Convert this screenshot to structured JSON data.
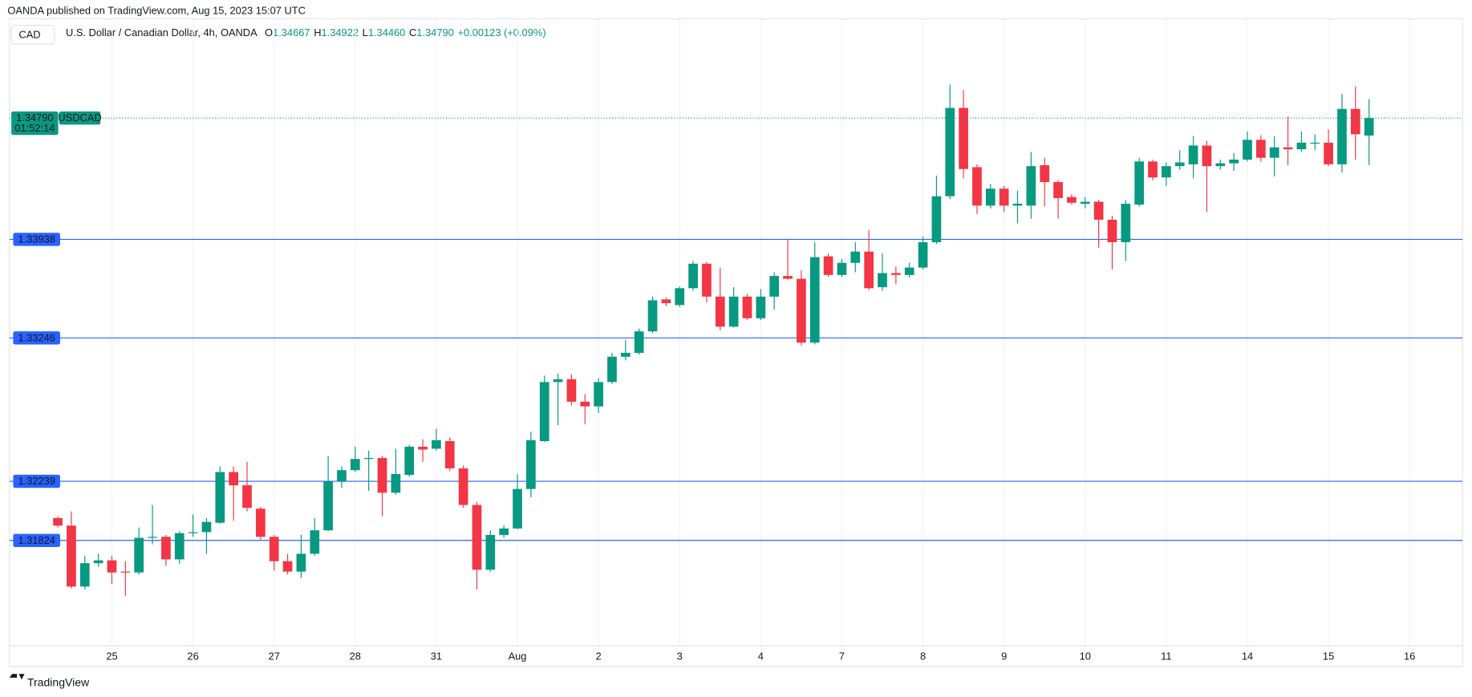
{
  "header": {
    "published": "OANDA published on TradingView.com, Aug 15, 2023 15:07 UTC",
    "currency_button": "CAD",
    "symbol_info": "U.S. Dollar / Canadian Dollar, 4h, OANDA",
    "ohlc": [
      [
        "O",
        "1.34667"
      ],
      [
        "H",
        "1.34922"
      ],
      [
        "L",
        "1.34460"
      ],
      [
        "C",
        "1.34790"
      ]
    ],
    "change": "+0.00123 (+0.09%)"
  },
  "footer": {
    "brand": "TradingView"
  },
  "chart_data": {
    "type": "candlestick",
    "series": [
      {
        "name": "USDCAD",
        "up_color": "#089981",
        "down_color": "#f23645",
        "open": [
          1.31981,
          1.31928,
          1.315,
          1.31664,
          1.31684,
          1.31605,
          1.31599,
          1.31842,
          1.31849,
          1.31691,
          1.31875,
          1.31882,
          1.31948,
          1.32304,
          1.32211,
          1.32047,
          1.31849,
          1.31678,
          1.31605,
          1.3173,
          1.31895,
          1.32238,
          1.32317,
          1.32396,
          1.32403,
          1.32159,
          1.32284,
          1.32482,
          1.32468,
          1.32521,
          1.3233,
          1.32073,
          1.31618,
          1.31862,
          1.31908,
          1.32185,
          1.32521,
          1.32936,
          1.32956,
          1.32798,
          1.32765,
          1.32936,
          1.33114,
          1.33141,
          1.33292,
          1.33516,
          1.33477,
          1.33595,
          1.33767,
          1.33536,
          1.33325,
          1.33536,
          1.33384,
          1.33536,
          1.33681,
          1.33661,
          1.33213,
          1.33819,
          1.33688,
          1.33773,
          1.33852,
          1.33602,
          1.33701,
          1.33688,
          1.3374,
          1.33918,
          1.34241,
          1.34861,
          1.34445,
          1.34175,
          1.34294,
          1.34175,
          1.34175,
          1.34459,
          1.3434,
          1.34235,
          1.34188,
          1.34202,
          1.34076,
          1.33918,
          1.34182,
          1.34485,
          1.34373,
          1.34452,
          1.34465,
          1.34597,
          1.34452,
          1.34472,
          1.34498,
          1.34637,
          1.34511,
          1.34584,
          1.34571,
          1.3461,
          1.34617,
          1.34465,
          1.34854,
          1.34667
        ],
        "high": [
          1.31994,
          1.32027,
          1.31717,
          1.3173,
          1.31717,
          1.31678,
          1.31915,
          1.32073,
          1.31862,
          1.31889,
          1.32007,
          1.31981,
          1.32343,
          1.32343,
          1.32376,
          1.3206,
          1.31862,
          1.3173,
          1.31862,
          1.31981,
          1.32416,
          1.32343,
          1.32482,
          1.32455,
          1.32416,
          1.32468,
          1.32495,
          1.32534,
          1.32607,
          1.32548,
          1.3235,
          1.32093,
          1.31895,
          1.31928,
          1.3229,
          1.32587,
          1.32982,
          1.32996,
          1.32989,
          1.32851,
          1.32963,
          1.33141,
          1.33233,
          1.33312,
          1.33536,
          1.33529,
          1.33608,
          1.33786,
          1.3378,
          1.3374,
          1.33602,
          1.33556,
          1.33589,
          1.33707,
          1.33938,
          1.33721,
          1.33918,
          1.33839,
          1.338,
          1.33918,
          1.34004,
          1.33839,
          1.33747,
          1.33773,
          1.33958,
          1.34386,
          1.35025,
          1.34986,
          1.34465,
          1.34327,
          1.34314,
          1.34281,
          1.34551,
          1.34511,
          1.34353,
          1.34254,
          1.34235,
          1.34215,
          1.34103,
          1.34215,
          1.34511,
          1.34498,
          1.34478,
          1.34564,
          1.34663,
          1.3463,
          1.34498,
          1.34544,
          1.34696,
          1.34669,
          1.34663,
          1.34801,
          1.34696,
          1.34676,
          1.34709,
          1.34959,
          1.35012,
          1.34922
        ],
        "low": [
          1.31915,
          1.31487,
          1.3148,
          1.31638,
          1.31519,
          1.31434,
          1.31585,
          1.31796,
          1.31645,
          1.31658,
          1.31849,
          1.3173,
          1.31941,
          1.31961,
          1.32027,
          1.31829,
          1.31612,
          1.31585,
          1.31559,
          1.31717,
          1.31889,
          1.32192,
          1.32304,
          1.32172,
          1.31994,
          1.32146,
          1.32271,
          1.32376,
          1.32455,
          1.3231,
          1.32053,
          1.3148,
          1.31605,
          1.31842,
          1.31902,
          1.32126,
          1.32515,
          1.32633,
          1.32772,
          1.3264,
          1.32719,
          1.32923,
          1.33088,
          1.33127,
          1.33279,
          1.3347,
          1.33464,
          1.33576,
          1.33496,
          1.33299,
          1.33319,
          1.33371,
          1.33371,
          1.33444,
          1.33655,
          1.33193,
          1.332,
          1.33674,
          1.33674,
          1.33707,
          1.33582,
          1.33576,
          1.33622,
          1.33668,
          1.33727,
          1.33905,
          1.34221,
          1.34366,
          1.34116,
          1.34155,
          1.34129,
          1.3405,
          1.34083,
          1.34169,
          1.34083,
          1.34182,
          1.34155,
          1.33879,
          1.33727,
          1.33786,
          1.34169,
          1.34353,
          1.34314,
          1.34426,
          1.34366,
          1.34129,
          1.34426,
          1.34419,
          1.34485,
          1.34485,
          1.3438,
          1.34459,
          1.34551,
          1.34564,
          1.34452,
          1.34406,
          1.34498,
          1.3446
        ],
        "close": [
          1.31928,
          1.315,
          1.31664,
          1.31684,
          1.31599,
          1.31599,
          1.31842,
          1.31849,
          1.31691,
          1.31875,
          1.31882,
          1.31954,
          1.32304,
          1.32211,
          1.32053,
          1.31849,
          1.31678,
          1.31605,
          1.3173,
          1.31895,
          1.32238,
          1.32317,
          1.32396,
          1.32403,
          1.32159,
          1.3229,
          1.32482,
          1.32462,
          1.32528,
          1.3233,
          1.32073,
          1.31618,
          1.31862,
          1.31908,
          1.32185,
          1.32528,
          1.32936,
          1.32956,
          1.32798,
          1.32765,
          1.32936,
          1.33114,
          1.33141,
          1.33292,
          1.3351,
          1.3349,
          1.33595,
          1.33767,
          1.33536,
          1.33325,
          1.33536,
          1.33384,
          1.33536,
          1.33681,
          1.33661,
          1.33213,
          1.33813,
          1.33688,
          1.33773,
          1.33852,
          1.33595,
          1.33701,
          1.33688,
          1.3374,
          1.33918,
          1.34241,
          1.34861,
          1.34432,
          1.34175,
          1.34294,
          1.34175,
          1.34188,
          1.34452,
          1.3434,
          1.34228,
          1.34195,
          1.34202,
          1.34076,
          1.33918,
          1.34188,
          1.34485,
          1.34373,
          1.34452,
          1.34478,
          1.34597,
          1.34452,
          1.34472,
          1.34498,
          1.34637,
          1.34511,
          1.34584,
          1.34571,
          1.34617,
          1.34617,
          1.34465,
          1.34854,
          1.34676,
          1.3479
        ]
      }
    ],
    "xlim": [
      -3.58,
      103.92
    ],
    "xticks": [
      {
        "value": 4,
        "label": "25"
      },
      {
        "value": 10,
        "label": "26"
      },
      {
        "value": 16,
        "label": "27"
      },
      {
        "value": 22,
        "label": "28"
      },
      {
        "value": 28,
        "label": "31"
      },
      {
        "value": 34,
        "label": "Aug"
      },
      {
        "value": 40,
        "label": "2"
      },
      {
        "value": 46,
        "label": "3"
      },
      {
        "value": 52,
        "label": "4"
      },
      {
        "value": 58,
        "label": "7"
      },
      {
        "value": 64,
        "label": "8"
      },
      {
        "value": 70,
        "label": "9"
      },
      {
        "value": 76,
        "label": "10"
      },
      {
        "value": 82,
        "label": "11"
      },
      {
        "value": 88,
        "label": "14"
      },
      {
        "value": 94,
        "label": "15"
      },
      {
        "value": 100,
        "label": "16"
      }
    ],
    "ylim": [
      1.31104,
      1.35487
    ],
    "grid": true,
    "levels": [
      1.33938,
      1.33246,
      1.32239,
      1.31824
    ],
    "level_color": "#2962ff",
    "last_price": {
      "value": 1.3479,
      "label": "1.34790"
    },
    "last_price_symbol": "USDCAD",
    "countdown": "01:52:14"
  }
}
